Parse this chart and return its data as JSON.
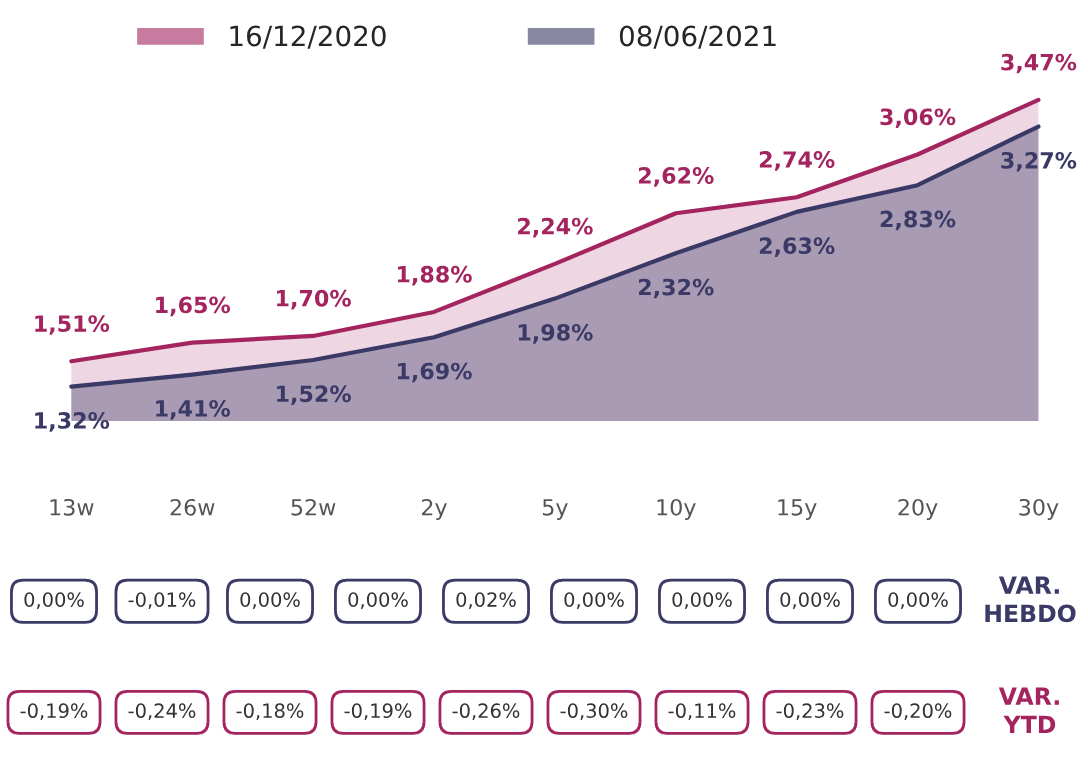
{
  "chart_data": {
    "type": "area",
    "categories": [
      "13w",
      "26w",
      "52w",
      "2y",
      "5y",
      "10y",
      "15y",
      "20y",
      "30y"
    ],
    "series": [
      {
        "name": "16/12/2020",
        "color": "#a3245e",
        "values": [
          1.51,
          1.65,
          1.7,
          1.88,
          2.24,
          2.62,
          2.74,
          3.06,
          3.47
        ],
        "value_labels": [
          "1,51%",
          "1,65%",
          "1,70%",
          "1,88%",
          "2,24%",
          "2,62%",
          "2,74%",
          "3,06%",
          "3,47%"
        ]
      },
      {
        "name": "08/06/2021",
        "color": "#3b3a67",
        "values": [
          1.32,
          1.41,
          1.52,
          1.69,
          1.98,
          2.32,
          2.63,
          2.83,
          3.27
        ],
        "value_labels": [
          "1,32%",
          "1,41%",
          "1,52%",
          "1,69%",
          "1,98%",
          "2,32%",
          "2,63%",
          "2,83%",
          "3,27%"
        ]
      }
    ],
    "legend": "top",
    "grid": false,
    "annotations": [
      "0,00%",
      "-0,01%",
      "0,00%",
      "0,00%",
      "0,02%",
      "0,00%",
      "0,00%",
      "0,00%",
      "0,00%",
      "-0,19%",
      "-0,24%",
      "-0,18%",
      "-0,19%",
      "-0,26%",
      "-0,30%",
      "-0,11%",
      "-0,23%",
      "-0,20%",
      "VAR.\nHEBDO",
      "VAR.\nYTD"
    ]
  }
}
